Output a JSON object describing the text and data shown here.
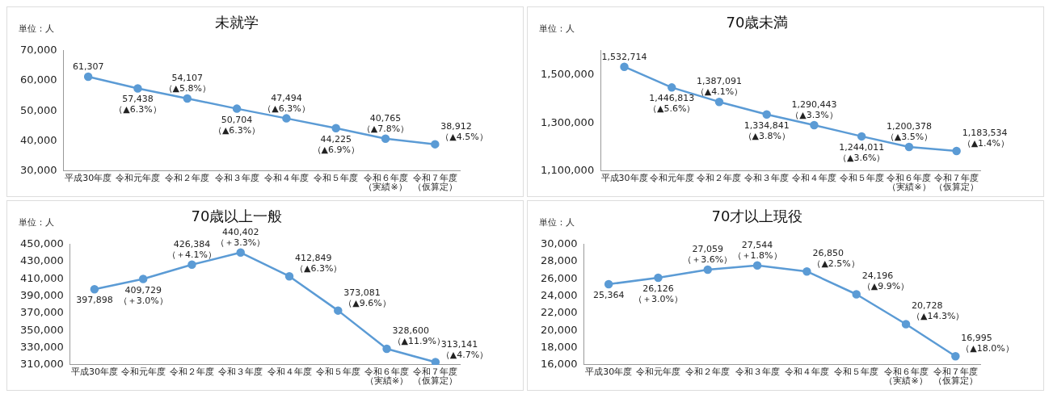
{
  "chart_data": [
    {
      "type": "line",
      "title": "未就学",
      "annotations": [
        "単位：人"
      ],
      "categories": [
        "平成30年度",
        "令和元年度",
        "令和２年度",
        "令和３年度",
        "令和４年度",
        "令和５年度",
        "令和６年度（実績※）",
        "令和７年度（仮算定）"
      ],
      "series": [
        {
          "color": "#5b9bd5",
          "values": [
            61307,
            57438,
            54107,
            50704,
            47494,
            44225,
            40765,
            38912
          ],
          "value_labels": [
            "61,307",
            "57,438\n（▲6.3%）",
            "54,107\n（▲5.8%）",
            "50,704\n（▲6.3%）",
            "47,494\n（▲6.3%）",
            "44,225\n（▲6.9%）",
            "40,765\n（▲7.8%）",
            "38,912\n（▲4.5%）"
          ]
        }
      ],
      "ylim": [
        30000,
        70000
      ],
      "yticks": [
        {
          "value": 30000,
          "label": "30,000"
        },
        {
          "value": 40000,
          "label": "40,000"
        },
        {
          "value": 50000,
          "label": "50,000"
        },
        {
          "value": 60000,
          "label": "60,000"
        },
        {
          "value": 70000,
          "label": "70,000"
        }
      ],
      "marker": "circle",
      "grid": false,
      "legend": false
    },
    {
      "type": "line",
      "title": "70歳未満",
      "annotations": [
        "単位：人"
      ],
      "categories": [
        "平成30年度",
        "令和元年度",
        "令和２年度",
        "令和３年度",
        "令和４年度",
        "令和５年度",
        "令和６年度（実績※）",
        "令和７年度（仮算定）"
      ],
      "series": [
        {
          "color": "#5b9bd5",
          "values": [
            1532714,
            1446813,
            1387091,
            1334841,
            1290443,
            1244011,
            1200378,
            1183534
          ],
          "value_labels": [
            "1,532,714",
            "1,446,813\n（▲5.6%）",
            "1,387,091\n（▲4.1%）",
            "1,334,841\n（▲3.8%）",
            "1,290,443\n（▲3.3%）",
            "1,244,011\n（▲3.6%）",
            "1,200,378\n（▲3.5%）",
            "1,183,534\n（▲1.4%）"
          ]
        }
      ],
      "ylim": [
        1100000,
        1600000
      ],
      "yticks": [
        {
          "value": 1100000,
          "label": "1,100,000"
        },
        {
          "value": 1300000,
          "label": "1,300,000"
        },
        {
          "value": 1500000,
          "label": "1,500,000"
        }
      ],
      "marker": "circle",
      "grid": false,
      "legend": false
    },
    {
      "type": "line",
      "title": "70歳以上一般",
      "annotations": [
        "単位：人"
      ],
      "categories": [
        "平成30年度",
        "令和元年度",
        "令和２年度",
        "令和３年度",
        "令和４年度",
        "令和５年度",
        "令和６年度（実績※）",
        "令和７年度（仮算定）"
      ],
      "series": [
        {
          "color": "#5b9bd5",
          "values": [
            397898,
            409729,
            426384,
            440402,
            412849,
            373081,
            328600,
            313141
          ],
          "value_labels": [
            "397,898",
            "409,729\n（＋3.0%）",
            "426,384\n（＋4.1%）",
            "440,402\n（＋3.3%）",
            "412,849\n（▲6.3%）",
            "373,081\n（▲9.6%）",
            "328,600\n（▲11.9%）",
            "313,141\n（▲4.7%）"
          ]
        }
      ],
      "ylim": [
        310000,
        450000
      ],
      "yticks": [
        {
          "value": 310000,
          "label": "310,000"
        },
        {
          "value": 330000,
          "label": "330,000"
        },
        {
          "value": 350000,
          "label": "350,000"
        },
        {
          "value": 370000,
          "label": "370,000"
        },
        {
          "value": 390000,
          "label": "390,000"
        },
        {
          "value": 410000,
          "label": "410,000"
        },
        {
          "value": 430000,
          "label": "430,000"
        },
        {
          "value": 450000,
          "label": "450,000"
        }
      ],
      "marker": "circle",
      "grid": false,
      "legend": false
    },
    {
      "type": "line",
      "title": "70才以上現役",
      "annotations": [
        "単位：人"
      ],
      "categories": [
        "平成30年度",
        "令和元年度",
        "令和２年度",
        "令和３年度",
        "令和４年度",
        "令和５年度",
        "令和６年度（実績※）",
        "令和７年度（仮算定）"
      ],
      "series": [
        {
          "color": "#5b9bd5",
          "values": [
            25364,
            26126,
            27059,
            27544,
            26850,
            24196,
            20728,
            16995
          ],
          "value_labels": [
            "25,364",
            "26,126\n（＋3.0%）",
            "27,059\n（＋3.6%）",
            "27,544\n（＋1.8%）",
            "26,850\n（▲2.5%）",
            "24,196\n（▲9.9%）",
            "20,728\n（▲14.3%）",
            "16,995\n（▲18.0%）"
          ]
        }
      ],
      "ylim": [
        16000,
        30000
      ],
      "yticks": [
        {
          "value": 16000,
          "label": "16,000"
        },
        {
          "value": 18000,
          "label": "18,000"
        },
        {
          "value": 20000,
          "label": "20,000"
        },
        {
          "value": 22000,
          "label": "22,000"
        },
        {
          "value": 24000,
          "label": "24,000"
        },
        {
          "value": 26000,
          "label": "26,000"
        },
        {
          "value": 28000,
          "label": "28,000"
        },
        {
          "value": 30000,
          "label": "30,000"
        }
      ],
      "marker": "circle",
      "grid": false,
      "legend": false
    }
  ]
}
